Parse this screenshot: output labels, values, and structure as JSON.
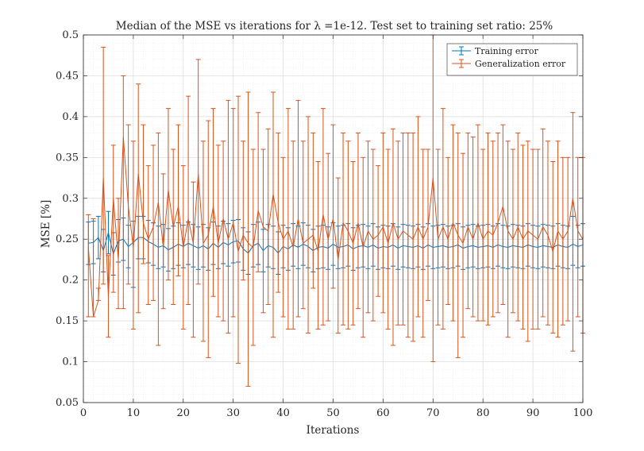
{
  "chart_data": {
    "type": "line",
    "title": "Median of the MSE vs iterations for λ =1e-12. Test set to training set ratio: 25%",
    "xlabel": "Iterations",
    "ylabel": "MSE [%]",
    "xlim": [
      0,
      100
    ],
    "ylim": [
      0.05,
      0.5
    ],
    "xticks": [
      0,
      10,
      20,
      30,
      40,
      50,
      60,
      70,
      80,
      90,
      100
    ],
    "yticks": [
      0.05,
      0.1,
      0.15,
      0.2,
      0.25,
      0.3,
      0.35,
      0.4,
      0.45,
      0.5
    ],
    "xtick_labels": [
      "0",
      "10",
      "20",
      "30",
      "40",
      "50",
      "60",
      "70",
      "80",
      "90",
      "100"
    ],
    "ytick_labels": [
      "0.05",
      "0.1",
      "0.15",
      "0.2",
      "0.25",
      "0.3",
      "0.35",
      "0.4",
      "0.45",
      "0.5"
    ],
    "grid": true,
    "minor_grid": true,
    "legend_position": "top-right",
    "x": [
      1,
      2,
      3,
      4,
      5,
      6,
      7,
      8,
      9,
      10,
      11,
      12,
      13,
      14,
      15,
      16,
      17,
      18,
      19,
      20,
      21,
      22,
      23,
      24,
      25,
      26,
      27,
      28,
      29,
      30,
      31,
      32,
      33,
      34,
      35,
      36,
      37,
      38,
      39,
      40,
      41,
      42,
      43,
      44,
      45,
      46,
      47,
      48,
      49,
      50,
      51,
      52,
      53,
      54,
      55,
      56,
      57,
      58,
      59,
      60,
      61,
      62,
      63,
      64,
      65,
      66,
      67,
      68,
      69,
      70,
      71,
      72,
      73,
      74,
      75,
      76,
      77,
      78,
      79,
      80,
      81,
      82,
      83,
      84,
      85,
      86,
      87,
      88,
      89,
      90,
      91,
      92,
      93,
      94,
      95,
      96,
      97,
      98,
      99,
      100
    ],
    "series": [
      {
        "name": "Training error",
        "color": "#0072BD",
        "values": [
          0.245,
          0.246,
          0.252,
          0.236,
          0.258,
          0.232,
          0.248,
          0.25,
          0.241,
          0.246,
          0.252,
          0.252,
          0.247,
          0.244,
          0.24,
          0.242,
          0.237,
          0.24,
          0.244,
          0.241,
          0.245,
          0.242,
          0.239,
          0.242,
          0.238,
          0.245,
          0.24,
          0.246,
          0.243,
          0.247,
          0.248,
          0.238,
          0.233,
          0.242,
          0.245,
          0.236,
          0.242,
          0.24,
          0.233,
          0.241,
          0.238,
          0.243,
          0.24,
          0.244,
          0.241,
          0.236,
          0.24,
          0.241,
          0.239,
          0.244,
          0.24,
          0.241,
          0.243,
          0.238,
          0.241,
          0.242,
          0.24,
          0.243,
          0.239,
          0.241,
          0.24,
          0.243,
          0.239,
          0.242,
          0.241,
          0.24,
          0.242,
          0.239,
          0.243,
          0.24,
          0.241,
          0.242,
          0.24,
          0.241,
          0.243,
          0.239,
          0.241,
          0.242,
          0.24,
          0.241,
          0.242,
          0.24,
          0.243,
          0.241,
          0.24,
          0.242,
          0.241,
          0.24,
          0.243,
          0.241,
          0.24,
          0.242,
          0.241,
          0.24,
          0.243,
          0.241,
          0.24,
          0.244,
          0.241,
          0.243
        ],
        "lower": [
          0.219,
          0.22,
          0.226,
          0.21,
          0.232,
          0.206,
          0.222,
          0.224,
          0.215,
          0.191,
          0.226,
          0.226,
          0.221,
          0.218,
          0.214,
          0.216,
          0.211,
          0.214,
          0.218,
          0.215,
          0.219,
          0.216,
          0.213,
          0.216,
          0.212,
          0.219,
          0.214,
          0.22,
          0.217,
          0.221,
          0.222,
          0.212,
          0.207,
          0.216,
          0.219,
          0.21,
          0.216,
          0.214,
          0.207,
          0.215,
          0.212,
          0.217,
          0.214,
          0.218,
          0.215,
          0.21,
          0.214,
          0.215,
          0.213,
          0.218,
          0.214,
          0.215,
          0.217,
          0.212,
          0.215,
          0.216,
          0.214,
          0.217,
          0.213,
          0.215,
          0.214,
          0.217,
          0.213,
          0.216,
          0.215,
          0.214,
          0.216,
          0.213,
          0.217,
          0.214,
          0.215,
          0.216,
          0.214,
          0.215,
          0.217,
          0.213,
          0.215,
          0.216,
          0.214,
          0.215,
          0.216,
          0.214,
          0.217,
          0.215,
          0.214,
          0.216,
          0.215,
          0.214,
          0.217,
          0.215,
          0.214,
          0.216,
          0.215,
          0.214,
          0.217,
          0.215,
          0.214,
          0.218,
          0.215,
          0.217
        ],
        "upper": [
          0.271,
          0.272,
          0.278,
          0.262,
          0.284,
          0.258,
          0.274,
          0.276,
          0.267,
          0.272,
          0.278,
          0.278,
          0.273,
          0.27,
          0.266,
          0.268,
          0.263,
          0.266,
          0.27,
          0.267,
          0.271,
          0.268,
          0.265,
          0.268,
          0.264,
          0.271,
          0.266,
          0.272,
          0.269,
          0.273,
          0.274,
          0.264,
          0.259,
          0.268,
          0.271,
          0.262,
          0.268,
          0.266,
          0.259,
          0.267,
          0.264,
          0.269,
          0.266,
          0.27,
          0.267,
          0.262,
          0.266,
          0.267,
          0.265,
          0.27,
          0.266,
          0.267,
          0.269,
          0.264,
          0.267,
          0.268,
          0.266,
          0.269,
          0.265,
          0.267,
          0.266,
          0.269,
          0.265,
          0.268,
          0.267,
          0.266,
          0.268,
          0.265,
          0.269,
          0.266,
          0.267,
          0.268,
          0.266,
          0.267,
          0.269,
          0.265,
          0.267,
          0.268,
          0.266,
          0.267,
          0.268,
          0.266,
          0.269,
          0.267,
          0.266,
          0.268,
          0.267,
          0.266,
          0.269,
          0.267,
          0.266,
          0.268,
          0.267,
          0.266,
          0.269,
          0.267,
          0.266,
          0.278,
          0.267,
          0.269
        ]
      },
      {
        "name": "Generalization error",
        "color": "#D95319",
        "values": [
          0.24,
          0.155,
          0.175,
          0.325,
          0.18,
          0.3,
          0.225,
          0.375,
          0.29,
          0.24,
          0.33,
          0.27,
          0.25,
          0.265,
          0.295,
          0.24,
          0.31,
          0.265,
          0.29,
          0.24,
          0.275,
          0.245,
          0.33,
          0.245,
          0.255,
          0.29,
          0.245,
          0.275,
          0.25,
          0.27,
          0.235,
          0.255,
          0.245,
          0.24,
          0.285,
          0.265,
          0.26,
          0.305,
          0.27,
          0.25,
          0.26,
          0.24,
          0.275,
          0.245,
          0.25,
          0.255,
          0.235,
          0.28,
          0.25,
          0.275,
          0.225,
          0.27,
          0.26,
          0.245,
          0.27,
          0.24,
          0.26,
          0.25,
          0.255,
          0.265,
          0.245,
          0.27,
          0.25,
          0.26,
          0.255,
          0.25,
          0.265,
          0.25,
          0.265,
          0.325,
          0.25,
          0.265,
          0.25,
          0.27,
          0.255,
          0.245,
          0.265,
          0.25,
          0.27,
          0.25,
          0.26,
          0.255,
          0.27,
          0.29,
          0.26,
          0.25,
          0.265,
          0.25,
          0.26,
          0.255,
          0.25,
          0.265,
          0.255,
          0.235,
          0.26,
          0.25,
          0.26,
          0.3,
          0.26,
          0.25
        ],
        "lower": [
          0.155,
          0.155,
          0.175,
          0.195,
          0.13,
          0.185,
          0.165,
          0.165,
          0.195,
          0.14,
          0.16,
          0.22,
          0.17,
          0.175,
          0.12,
          0.165,
          0.2,
          0.17,
          0.205,
          0.14,
          0.17,
          0.13,
          0.195,
          0.125,
          0.105,
          0.18,
          0.155,
          0.15,
          0.135,
          0.155,
          0.098,
          0.2,
          0.07,
          0.12,
          0.21,
          0.16,
          0.17,
          0.13,
          0.185,
          0.155,
          0.14,
          0.14,
          0.155,
          0.165,
          0.135,
          0.19,
          0.14,
          0.145,
          0.15,
          0.19,
          0.135,
          0.145,
          0.14,
          0.145,
          0.165,
          0.13,
          0.16,
          0.15,
          0.18,
          0.16,
          0.14,
          0.12,
          0.145,
          0.145,
          0.13,
          0.125,
          0.155,
          0.13,
          0.175,
          0.1,
          0.145,
          0.14,
          0.17,
          0.15,
          0.105,
          0.13,
          0.165,
          0.155,
          0.15,
          0.15,
          0.145,
          0.155,
          0.16,
          0.17,
          0.13,
          0.16,
          0.15,
          0.14,
          0.125,
          0.14,
          0.14,
          0.155,
          0.145,
          0.135,
          0.13,
          0.145,
          0.15,
          0.113,
          0.155,
          0.135
        ],
        "upper": [
          0.28,
          0.275,
          0.19,
          0.485,
          0.23,
          0.365,
          0.3,
          0.45,
          0.39,
          0.37,
          0.44,
          0.39,
          0.34,
          0.365,
          0.38,
          0.33,
          0.41,
          0.36,
          0.39,
          0.34,
          0.425,
          0.32,
          0.47,
          0.37,
          0.395,
          0.41,
          0.365,
          0.37,
          0.42,
          0.41,
          0.425,
          0.37,
          0.43,
          0.36,
          0.405,
          0.36,
          0.385,
          0.43,
          0.38,
          0.35,
          0.41,
          0.37,
          0.42,
          0.37,
          0.4,
          0.38,
          0.345,
          0.41,
          0.355,
          0.39,
          0.325,
          0.38,
          0.37,
          0.345,
          0.38,
          0.35,
          0.37,
          0.36,
          0.34,
          0.38,
          0.36,
          0.385,
          0.37,
          0.38,
          0.38,
          0.38,
          0.4,
          0.36,
          0.36,
          0.5,
          0.36,
          0.41,
          0.35,
          0.39,
          0.38,
          0.355,
          0.38,
          0.375,
          0.39,
          0.36,
          0.38,
          0.37,
          0.38,
          0.39,
          0.37,
          0.36,
          0.38,
          0.365,
          0.37,
          0.36,
          0.36,
          0.385,
          0.37,
          0.345,
          0.37,
          0.35,
          0.35,
          0.405,
          0.35,
          0.35
        ]
      }
    ]
  }
}
